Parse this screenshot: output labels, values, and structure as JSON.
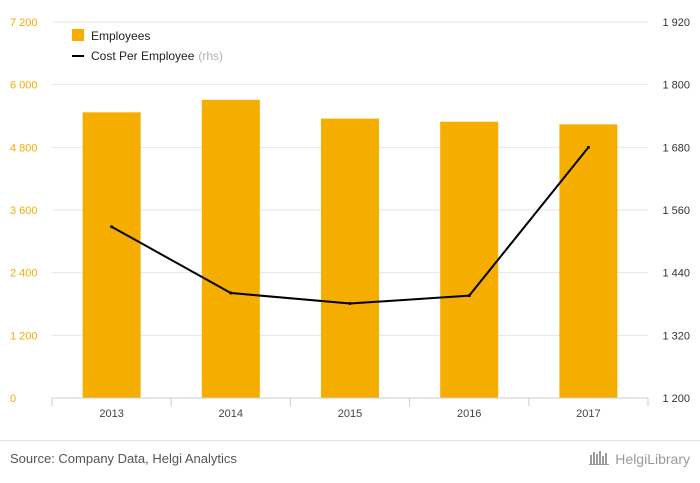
{
  "chart_data": {
    "type": "bar",
    "categories": [
      "2013",
      "2014",
      "2015",
      "2016",
      "2017"
    ],
    "series": [
      {
        "name": "Employees",
        "type": "bar",
        "axis": "left",
        "color": "#F5AD00",
        "values": [
          5470,
          5710,
          5350,
          5290,
          5240
        ]
      },
      {
        "name": "Cost Per Employee",
        "note": "(rhs)",
        "type": "line",
        "axis": "right",
        "color": "#000000",
        "values": [
          1528,
          1401,
          1381,
          1396,
          1680
        ]
      }
    ],
    "y_left": {
      "ticks": [
        0,
        1200,
        2400,
        3600,
        4800,
        6000,
        7200
      ],
      "tick_labels": [
        "0",
        "1 200",
        "2 400",
        "3 600",
        "4 800",
        "6 000",
        "7 200"
      ],
      "ylim": [
        0,
        7200
      ],
      "color": "#F5AD00"
    },
    "y_right": {
      "ticks": [
        1200,
        1320,
        1440,
        1560,
        1680,
        1800,
        1920
      ],
      "tick_labels": [
        "1 200",
        "1 320",
        "1 440",
        "1 560",
        "1 680",
        "1 800",
        "1 920"
      ],
      "ylim": [
        1200,
        1920
      ]
    },
    "grid": true,
    "legend_position": "top-left"
  },
  "footer": {
    "source": "Source: Company Data, Helgi Analytics",
    "brand": "HelgiLibrary",
    "brand_icon": "helgi-library-logo-icon"
  }
}
